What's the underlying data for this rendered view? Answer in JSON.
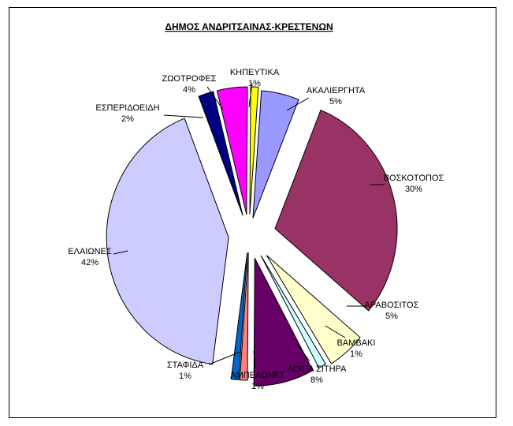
{
  "chart_data": {
    "type": "pie",
    "title": "ΔΗΜΟΣ ΑΝΔΡΙΤΣΑΙΝΑΣ-ΚΡΕΣΤΕΝΩΝ",
    "exploded": true,
    "slices": [
      {
        "label": "ΑΚΑΛΙΕΡΓΗΤΑ",
        "value": 5,
        "percent_label": "5%",
        "color": "#9999FF"
      },
      {
        "label": "ΒΟΣΚΟΤΟΠΟΣ",
        "value": 30,
        "percent_label": "30%",
        "color": "#993366"
      },
      {
        "label": "ΑΡΑΒΟΣΙΤΟΣ",
        "value": 5,
        "percent_label": "5%",
        "color": "#FFFFCC"
      },
      {
        "label": "ΒΑΜΒΑΚΙ",
        "value": 1,
        "percent_label": "1%",
        "color": "#CCFFFF"
      },
      {
        "label": "ΛΟΙΠΑ ΣΙΤΗΡΑ",
        "value": 8,
        "percent_label": "8%",
        "color": "#660066"
      },
      {
        "label": "ΑΜΠΕΛΩΝΕΣ",
        "value": 1,
        "percent_label": "1%",
        "color": "#FF8080"
      },
      {
        "label": "ΣΤΑΦΙΔΑ",
        "value": 1,
        "percent_label": "1%",
        "color": "#0066CC"
      },
      {
        "label": "ΕΛΑΙΩΝΕΣ",
        "value": 42,
        "percent_label": "42%",
        "color": "#CCCCFF"
      },
      {
        "label": "ΕΣΠΕΡΙΔΟΕΙΔΗ",
        "value": 2,
        "percent_label": "2%",
        "color": "#000080"
      },
      {
        "label": "ΖΩΟΤΡΟΦΕΣ",
        "value": 4,
        "percent_label": "4%",
        "color": "#FF00FF"
      },
      {
        "label": "ΚΗΠΕΥΤΙΚΑ",
        "value": 1,
        "percent_label": "1%",
        "color": "#FFFF00"
      }
    ]
  }
}
